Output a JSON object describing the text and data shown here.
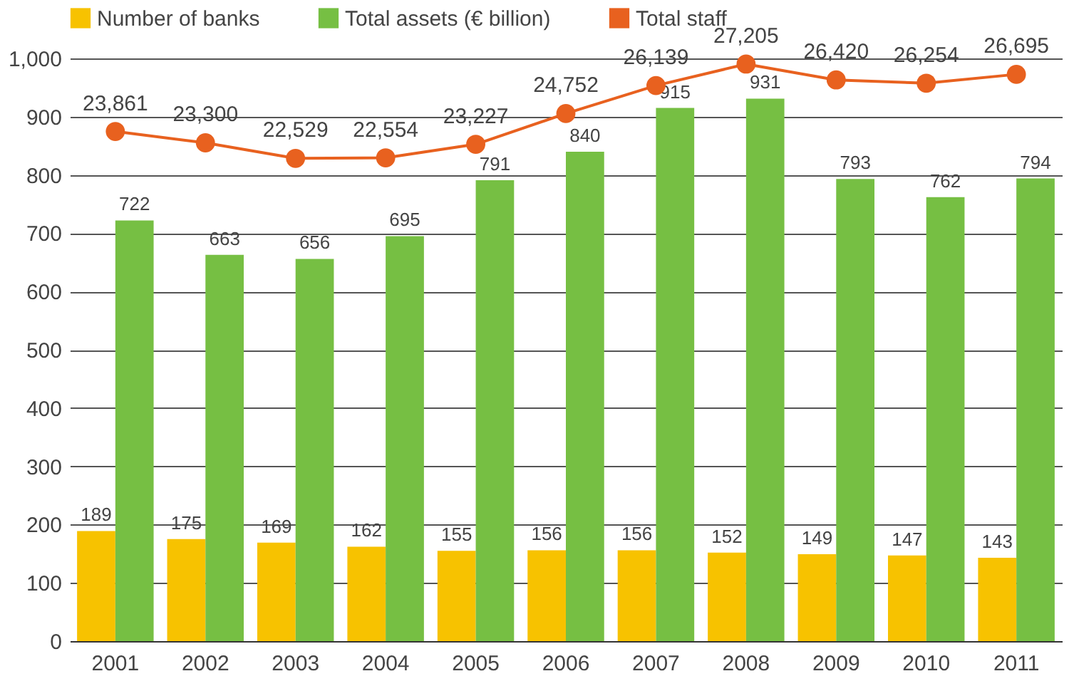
{
  "chart_data": {
    "type": "bar",
    "categories": [
      "2001",
      "2002",
      "2003",
      "2004",
      "2005",
      "2006",
      "2007",
      "2008",
      "2009",
      "2010",
      "2011"
    ],
    "series": [
      {
        "name": "Number of banks",
        "color": "#f7c200",
        "values": [
          189,
          175,
          169,
          162,
          155,
          156,
          156,
          152,
          149,
          147,
          143
        ]
      },
      {
        "name": "Total assets (€ billion)",
        "color": "#76bf43",
        "values": [
          722,
          663,
          656,
          695,
          791,
          840,
          915,
          931,
          793,
          762,
          794
        ]
      },
      {
        "name": "Total staff",
        "color": "#e8611f",
        "type": "line",
        "axis": "y2",
        "marker": "circle",
        "values": [
          23861,
          23300,
          22529,
          22554,
          23227,
          24752,
          26139,
          27205,
          26420,
          26254,
          26695
        ],
        "value_labels": [
          "23,861",
          "23,300",
          "22,529",
          "22,554",
          "23,227",
          "24,752",
          "26,139",
          "27,205",
          "26,420",
          "26,254",
          "26,695"
        ]
      }
    ],
    "ylim": [
      0,
      1000
    ],
    "yticks": [
      0,
      100,
      200,
      300,
      400,
      500,
      600,
      700,
      800,
      900,
      {
        "value": 1000,
        "label": "1,000"
      }
    ],
    "grid": "y",
    "legend": "top",
    "data_labels": true
  }
}
